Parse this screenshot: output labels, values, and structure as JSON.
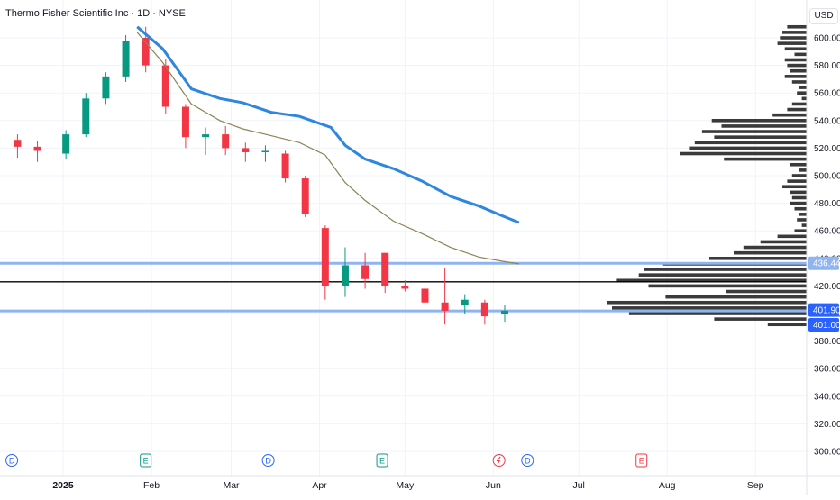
{
  "header": {
    "title": "Thermo Fisher Scientific Inc · 1D · NYSE",
    "currency": "USD"
  },
  "price_axis": {
    "ticks": [
      "600.00",
      "580.00",
      "560.00",
      "540.00",
      "520.00",
      "500.00",
      "480.00",
      "460.00",
      "440.00",
      "420.00",
      "400.00",
      "380.00",
      "360.00",
      "340.00",
      "320.00",
      "300.00"
    ],
    "badges": [
      {
        "label": "436.44",
        "value": 436.44,
        "color": "#8fb4f0"
      },
      {
        "label": "401.90",
        "value": 401.9,
        "color": "#2962ff"
      },
      {
        "label": "401.00",
        "value": 401.0,
        "color": "#2962ff"
      }
    ]
  },
  "time_axis": {
    "ticks": [
      {
        "label": "2025",
        "date": "2025-01-01",
        "bold": true
      },
      {
        "label": "Feb",
        "date": "2025-02-01"
      },
      {
        "label": "Mar",
        "date": "2025-03-01"
      },
      {
        "label": "Apr",
        "date": "2025-04-01"
      },
      {
        "label": "May",
        "date": "2025-05-01"
      },
      {
        "label": "Jun",
        "date": "2025-06-01"
      },
      {
        "label": "Jul",
        "date": "2025-07-01"
      },
      {
        "label": "Aug",
        "date": "2025-08-01"
      },
      {
        "label": "Sep",
        "date": "2025-09-01"
      }
    ]
  },
  "events": [
    {
      "type": "dividend",
      "label": "D",
      "date": "2024-12-14",
      "color": "#2962ff"
    },
    {
      "type": "earnings",
      "label": "E",
      "date": "2025-01-30",
      "color": "#089981"
    },
    {
      "type": "dividend",
      "label": "D",
      "date": "2025-03-14",
      "color": "#2962ff"
    },
    {
      "type": "earnings",
      "label": "E",
      "date": "2025-04-23",
      "color": "#089981"
    },
    {
      "type": "split",
      "label": "",
      "date": "2025-06-03",
      "color": "#f23645"
    },
    {
      "type": "dividend",
      "label": "D",
      "date": "2025-06-13",
      "color": "#2962ff"
    },
    {
      "type": "earnings",
      "label": "E",
      "date": "2025-07-23",
      "color": "#f23645"
    }
  ],
  "colors": {
    "up": "#089981",
    "down": "#f23645",
    "ema_blue": "#2e86de",
    "ma_olive": "#8b8554",
    "volume_profile": "#3a3a3a",
    "hline_blue": "#8fb4f0",
    "hline_black": "#000000"
  },
  "chart_data": {
    "type": "candlestick",
    "symbol": "Thermo Fisher Scientific Inc",
    "interval": "1D",
    "exchange": "NYSE",
    "ylim": [
      300,
      610
    ],
    "candles_weekly_approx": [
      {
        "date": "2024-12-16",
        "open": 526,
        "high": 530,
        "low": 513,
        "close": 521
      },
      {
        "date": "2024-12-23",
        "open": 521,
        "high": 525,
        "low": 510,
        "close": 518
      },
      {
        "date": "2025-01-02",
        "open": 516,
        "high": 533,
        "low": 512,
        "close": 530
      },
      {
        "date": "2025-01-09",
        "open": 530,
        "high": 560,
        "low": 528,
        "close": 556
      },
      {
        "date": "2025-01-16",
        "open": 556,
        "high": 575,
        "low": 552,
        "close": 572
      },
      {
        "date": "2025-01-23",
        "open": 572,
        "high": 602,
        "low": 568,
        "close": 598
      },
      {
        "date": "2025-01-30",
        "open": 600,
        "high": 608,
        "low": 575,
        "close": 580
      },
      {
        "date": "2025-02-06",
        "open": 580,
        "high": 585,
        "low": 545,
        "close": 550
      },
      {
        "date": "2025-02-13",
        "open": 550,
        "high": 552,
        "low": 520,
        "close": 528
      },
      {
        "date": "2025-02-20",
        "open": 528,
        "high": 535,
        "low": 515,
        "close": 530
      },
      {
        "date": "2025-02-27",
        "open": 530,
        "high": 536,
        "low": 515,
        "close": 520
      },
      {
        "date": "2025-03-06",
        "open": 520,
        "high": 524,
        "low": 510,
        "close": 517
      },
      {
        "date": "2025-03-13",
        "open": 517,
        "high": 522,
        "low": 510,
        "close": 518
      },
      {
        "date": "2025-03-20",
        "open": 516,
        "high": 518,
        "low": 495,
        "close": 498
      },
      {
        "date": "2025-03-27",
        "open": 498,
        "high": 500,
        "low": 470,
        "close": 472
      },
      {
        "date": "2025-04-03",
        "open": 462,
        "high": 464,
        "low": 410,
        "close": 420
      },
      {
        "date": "2025-04-10",
        "open": 420,
        "high": 448,
        "low": 412,
        "close": 435
      },
      {
        "date": "2025-04-17",
        "open": 435,
        "high": 444,
        "low": 418,
        "close": 425
      },
      {
        "date": "2025-04-24",
        "open": 444,
        "high": 444,
        "low": 415,
        "close": 420
      },
      {
        "date": "2025-05-01",
        "open": 420,
        "high": 424,
        "low": 416,
        "close": 418
      },
      {
        "date": "2025-05-08",
        "open": 418,
        "high": 420,
        "low": 404,
        "close": 408
      },
      {
        "date": "2025-05-15",
        "open": 408,
        "high": 433,
        "low": 392,
        "close": 402
      },
      {
        "date": "2025-05-22",
        "open": 406,
        "high": 414,
        "low": 400,
        "close": 410
      },
      {
        "date": "2025-05-29",
        "open": 408,
        "high": 410,
        "low": 392,
        "close": 398
      },
      {
        "date": "2025-06-05",
        "open": 400,
        "high": 406,
        "low": 394,
        "close": 402
      }
    ],
    "series": [
      {
        "type": "line",
        "color": "#2e86de",
        "points": [
          [
            "2025-01-27",
            608
          ],
          [
            "2025-02-05",
            592
          ],
          [
            "2025-02-15",
            563
          ],
          [
            "2025-02-25",
            556
          ],
          [
            "2025-03-05",
            553
          ],
          [
            "2025-03-15",
            546
          ],
          [
            "2025-03-25",
            543
          ],
          [
            "2025-04-05",
            535
          ],
          [
            "2025-04-10",
            522
          ],
          [
            "2025-04-17",
            512
          ],
          [
            "2025-04-27",
            505
          ],
          [
            "2025-05-07",
            496
          ],
          [
            "2025-05-17",
            485
          ],
          [
            "2025-05-27",
            478
          ],
          [
            "2025-06-04",
            471
          ],
          [
            "2025-06-10",
            466
          ]
        ]
      },
      {
        "type": "line",
        "color": "#8b8554",
        "points": [
          [
            "2025-01-27",
            604
          ],
          [
            "2025-02-05",
            582
          ],
          [
            "2025-02-15",
            552
          ],
          [
            "2025-02-25",
            540
          ],
          [
            "2025-03-05",
            534
          ],
          [
            "2025-03-15",
            529
          ],
          [
            "2025-03-25",
            524
          ],
          [
            "2025-04-03",
            515
          ],
          [
            "2025-04-10",
            495
          ],
          [
            "2025-04-17",
            482
          ],
          [
            "2025-04-27",
            467
          ],
          [
            "2025-05-07",
            458
          ],
          [
            "2025-05-17",
            448
          ],
          [
            "2025-05-27",
            441
          ],
          [
            "2025-06-04",
            438
          ],
          [
            "2025-06-10",
            436
          ]
        ]
      }
    ],
    "horizontal_lines": [
      {
        "value": 436.44,
        "color": "#8fb4f0"
      },
      {
        "value": 423.0,
        "color": "#000000"
      },
      {
        "value": 401.9,
        "color": "#8fb4f0"
      }
    ],
    "volume_profile": [
      {
        "price": 608,
        "width": 0.08
      },
      {
        "price": 604,
        "width": 0.1
      },
      {
        "price": 600,
        "width": 0.11
      },
      {
        "price": 596,
        "width": 0.12
      },
      {
        "price": 592,
        "width": 0.09
      },
      {
        "price": 588,
        "width": 0.05
      },
      {
        "price": 584,
        "width": 0.09
      },
      {
        "price": 580,
        "width": 0.08
      },
      {
        "price": 576,
        "width": 0.07
      },
      {
        "price": 572,
        "width": 0.09
      },
      {
        "price": 568,
        "width": 0.06
      },
      {
        "price": 564,
        "width": 0.03
      },
      {
        "price": 560,
        "width": 0.04
      },
      {
        "price": 556,
        "width": 0.02
      },
      {
        "price": 552,
        "width": 0.06
      },
      {
        "price": 548,
        "width": 0.08
      },
      {
        "price": 544,
        "width": 0.14
      },
      {
        "price": 540,
        "width": 0.39
      },
      {
        "price": 536,
        "width": 0.35
      },
      {
        "price": 532,
        "width": 0.43
      },
      {
        "price": 528,
        "width": 0.38
      },
      {
        "price": 524,
        "width": 0.46
      },
      {
        "price": 520,
        "width": 0.48
      },
      {
        "price": 516,
        "width": 0.52
      },
      {
        "price": 512,
        "width": 0.34
      },
      {
        "price": 508,
        "width": 0.07
      },
      {
        "price": 504,
        "width": 0.03
      },
      {
        "price": 500,
        "width": 0.06
      },
      {
        "price": 496,
        "width": 0.08
      },
      {
        "price": 492,
        "width": 0.1
      },
      {
        "price": 488,
        "width": 0.07
      },
      {
        "price": 484,
        "width": 0.06
      },
      {
        "price": 480,
        "width": 0.07
      },
      {
        "price": 476,
        "width": 0.05
      },
      {
        "price": 472,
        "width": 0.03
      },
      {
        "price": 468,
        "width": 0.04
      },
      {
        "price": 464,
        "width": 0.02
      },
      {
        "price": 460,
        "width": 0.05
      },
      {
        "price": 456,
        "width": 0.12
      },
      {
        "price": 452,
        "width": 0.19
      },
      {
        "price": 448,
        "width": 0.26
      },
      {
        "price": 444,
        "width": 0.3
      },
      {
        "price": 440,
        "width": 0.4
      },
      {
        "price": 436,
        "width": 0.59
      },
      {
        "price": 432,
        "width": 0.67
      },
      {
        "price": 428,
        "width": 0.69
      },
      {
        "price": 424,
        "width": 0.78
      },
      {
        "price": 420,
        "width": 0.65
      },
      {
        "price": 416,
        "width": 0.33
      },
      {
        "price": 412,
        "width": 0.58
      },
      {
        "price": 408,
        "width": 0.82
      },
      {
        "price": 404,
        "width": 0.8
      },
      {
        "price": 400,
        "width": 0.73
      },
      {
        "price": 396,
        "width": 0.38
      },
      {
        "price": 392,
        "width": 0.16
      }
    ]
  }
}
